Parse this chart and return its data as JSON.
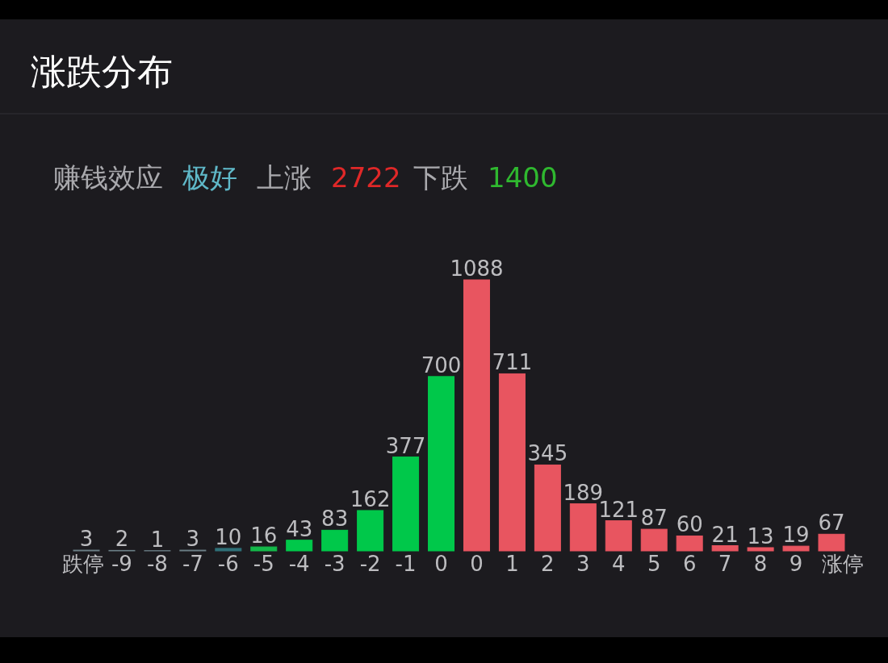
{
  "chart_data": {
    "type": "bar",
    "title": "涨跌分布",
    "annotations": [
      "赚钱效应",
      "极好",
      "上涨",
      "2722",
      "下跌",
      "1400"
    ],
    "categories": [
      "跌停",
      "-9",
      "-8",
      "-7",
      "-6",
      "-5",
      "-4",
      "-3",
      "-2",
      "-1",
      "0",
      "0",
      "1",
      "2",
      "3",
      "4",
      "5",
      "6",
      "7",
      "8",
      "9",
      "涨停"
    ],
    "values": [
      3,
      2,
      1,
      3,
      10,
      16,
      43,
      83,
      162,
      377,
      700,
      1088,
      711,
      345,
      189,
      121,
      87,
      60,
      21,
      13,
      19,
      67
    ],
    "colors": [
      "#6b7f86",
      "#6b7f86",
      "#6b7f86",
      "#6b7f86",
      "#2f7078",
      "#14b84a",
      "#00c84a",
      "#00c84a",
      "#00c84a",
      "#00c84a",
      "#00c84a",
      "#e85560",
      "#e85560",
      "#e85560",
      "#e85560",
      "#e85560",
      "#e85560",
      "#e85560",
      "#e85560",
      "#e85560",
      "#e85560",
      "#e85560"
    ],
    "data_labels": true
  }
}
